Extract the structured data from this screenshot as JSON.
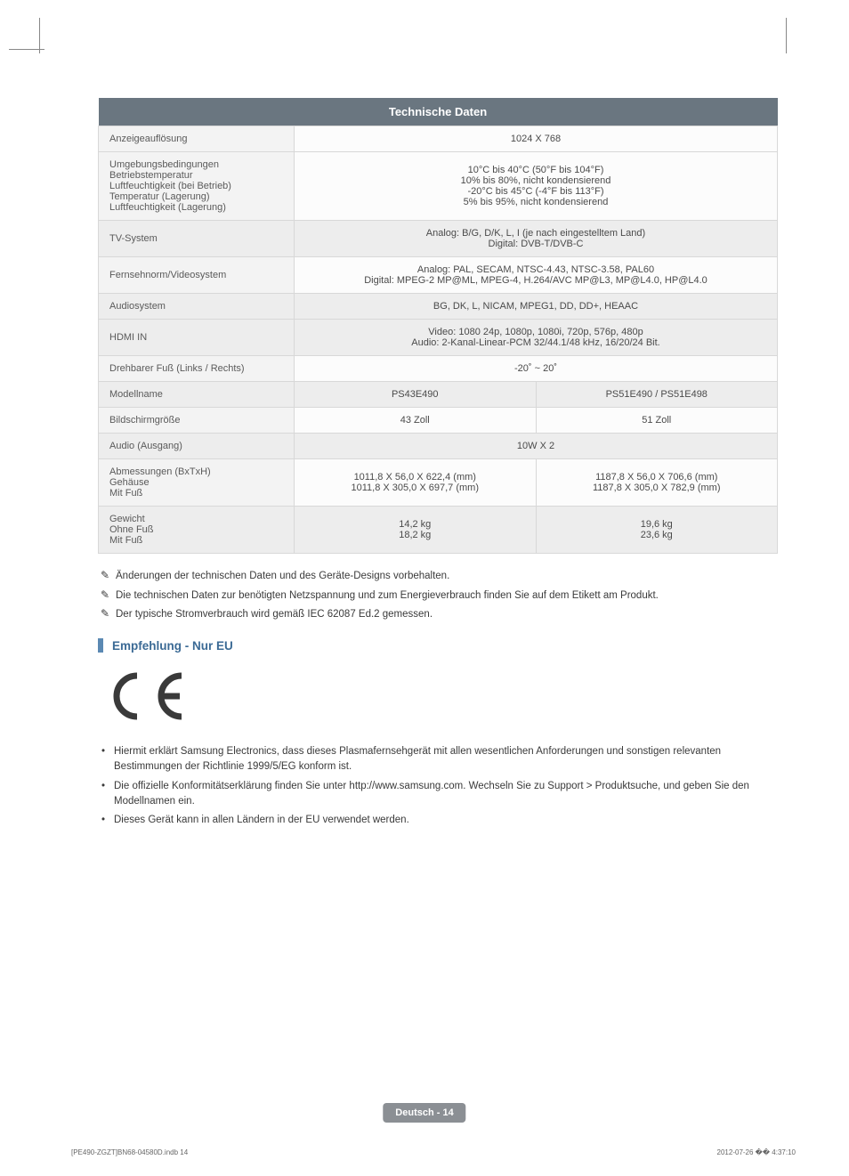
{
  "header_title": "Technische Daten",
  "rows": [
    {
      "label": "Anzeigeauflösung",
      "value": "1024 X 768",
      "span": 2,
      "shade": false
    },
    {
      "label_lines": [
        "Umgebungsbedingungen",
        "Betriebstemperatur",
        "Luftfeuchtigkeit (bei Betrieb)",
        "Temperatur (Lagerung)",
        "Luftfeuchtigkeit (Lagerung)"
      ],
      "value_lines": [
        "10°C bis 40°C (50°F bis 104°F)",
        "10% bis 80%, nicht kondensierend",
        "-20°C bis 45°C (-4°F  bis 113°F)",
        "5% bis 95%, nicht kondensierend"
      ],
      "span": 2,
      "shade": false
    },
    {
      "label": "TV-System",
      "value_lines": [
        "Analog: B/G, D/K, L, I (je nach eingestelltem Land)",
        "Digital: DVB-T/DVB-C"
      ],
      "span": 2,
      "shade": true
    },
    {
      "label": "Fernsehnorm/Videosystem",
      "value_lines": [
        "Analog: PAL, SECAM, NTSC-4.43, NTSC-3.58, PAL60",
        "Digital: MPEG-2 MP@ML, MPEG-4, H.264/AVC MP@L3, MP@L4.0, HP@L4.0"
      ],
      "span": 2,
      "shade": false
    },
    {
      "label": "Audiosystem",
      "value": "BG, DK, L, NICAM, MPEG1, DD, DD+, HEAAC",
      "span": 2,
      "shade": true
    },
    {
      "label": "HDMI IN",
      "value_lines": [
        "Video: 1080 24p, 1080p, 1080i, 720p, 576p, 480p",
        "Audio: 2-Kanal-Linear-PCM 32/44.1/48 kHz, 16/20/24 Bit."
      ],
      "span": 2,
      "shade": true
    },
    {
      "label": "Drehbarer Fuß (Links / Rechts)",
      "value": "-20˚ ~ 20˚",
      "span": 2,
      "shade": false
    },
    {
      "label": "Modellname",
      "col1": "PS43E490",
      "col2": "PS51E490 / PS51E498",
      "shade": true
    },
    {
      "label": "Bildschirmgröße",
      "col1": "43 Zoll",
      "col2": "51 Zoll",
      "shade": false
    },
    {
      "label": "Audio (Ausgang)",
      "value": "10W X 2",
      "span": 2,
      "shade": true
    },
    {
      "label_lines": [
        "Abmessungen (BxTxH)",
        "Gehäuse",
        "Mit Fuß"
      ],
      "col1_lines": [
        "1011,8 X 56,0 X 622,4 (mm)",
        "1011,8 X 305,0 X 697,7 (mm)"
      ],
      "col2_lines": [
        "1187,8 X 56,0 X 706,6 (mm)",
        "1187,8 X 305,0 X 782,9 (mm)"
      ],
      "shade": false
    },
    {
      "label_lines": [
        "Gewicht",
        "Ohne Fuß",
        "Mit Fuß"
      ],
      "col1_lines": [
        "14,2 kg",
        "18,2 kg"
      ],
      "col2_lines": [
        "19,6 kg",
        "23,6 kg"
      ],
      "shade": true
    }
  ],
  "notes": [
    "Änderungen der technischen Daten und des Geräte-Designs vorbehalten.",
    "Die technischen Daten zur benötigten Netzspannung und zum Energieverbrauch finden Sie auf dem Etikett am Produkt.",
    "Der typische Stromverbrauch wird gemäß IEC 62087 Ed.2 gemessen."
  ],
  "section_title": "Empfehlung - Nur EU",
  "bullets": [
    "Hiermit erklärt Samsung Electronics, dass dieses Plasmafernsehgerät mit allen wesentlichen Anforderungen und sonstigen relevanten Bestimmungen der Richtlinie 1999/5/EG konform ist.",
    "Die offizielle Konformitätserklärung finden Sie unter http://www.samsung.com. Wechseln Sie zu Support > Produktsuche, und geben Sie den Modellnamen ein.",
    "Dieses Gerät kann in allen Ländern in der EU verwendet werden."
  ],
  "footer_badge": "Deutsch - 14",
  "footer_left": "[PE490-ZGZT]BN68-04580D.indb   14",
  "footer_right": "2012-07-26   �� 4:37:10",
  "note_icon": "✎",
  "colors": {
    "header_bg": "#6a7680",
    "section_blue": "#3b6a95",
    "bar_blue": "#5b89b3",
    "badge_bg": "#8b8f94"
  }
}
